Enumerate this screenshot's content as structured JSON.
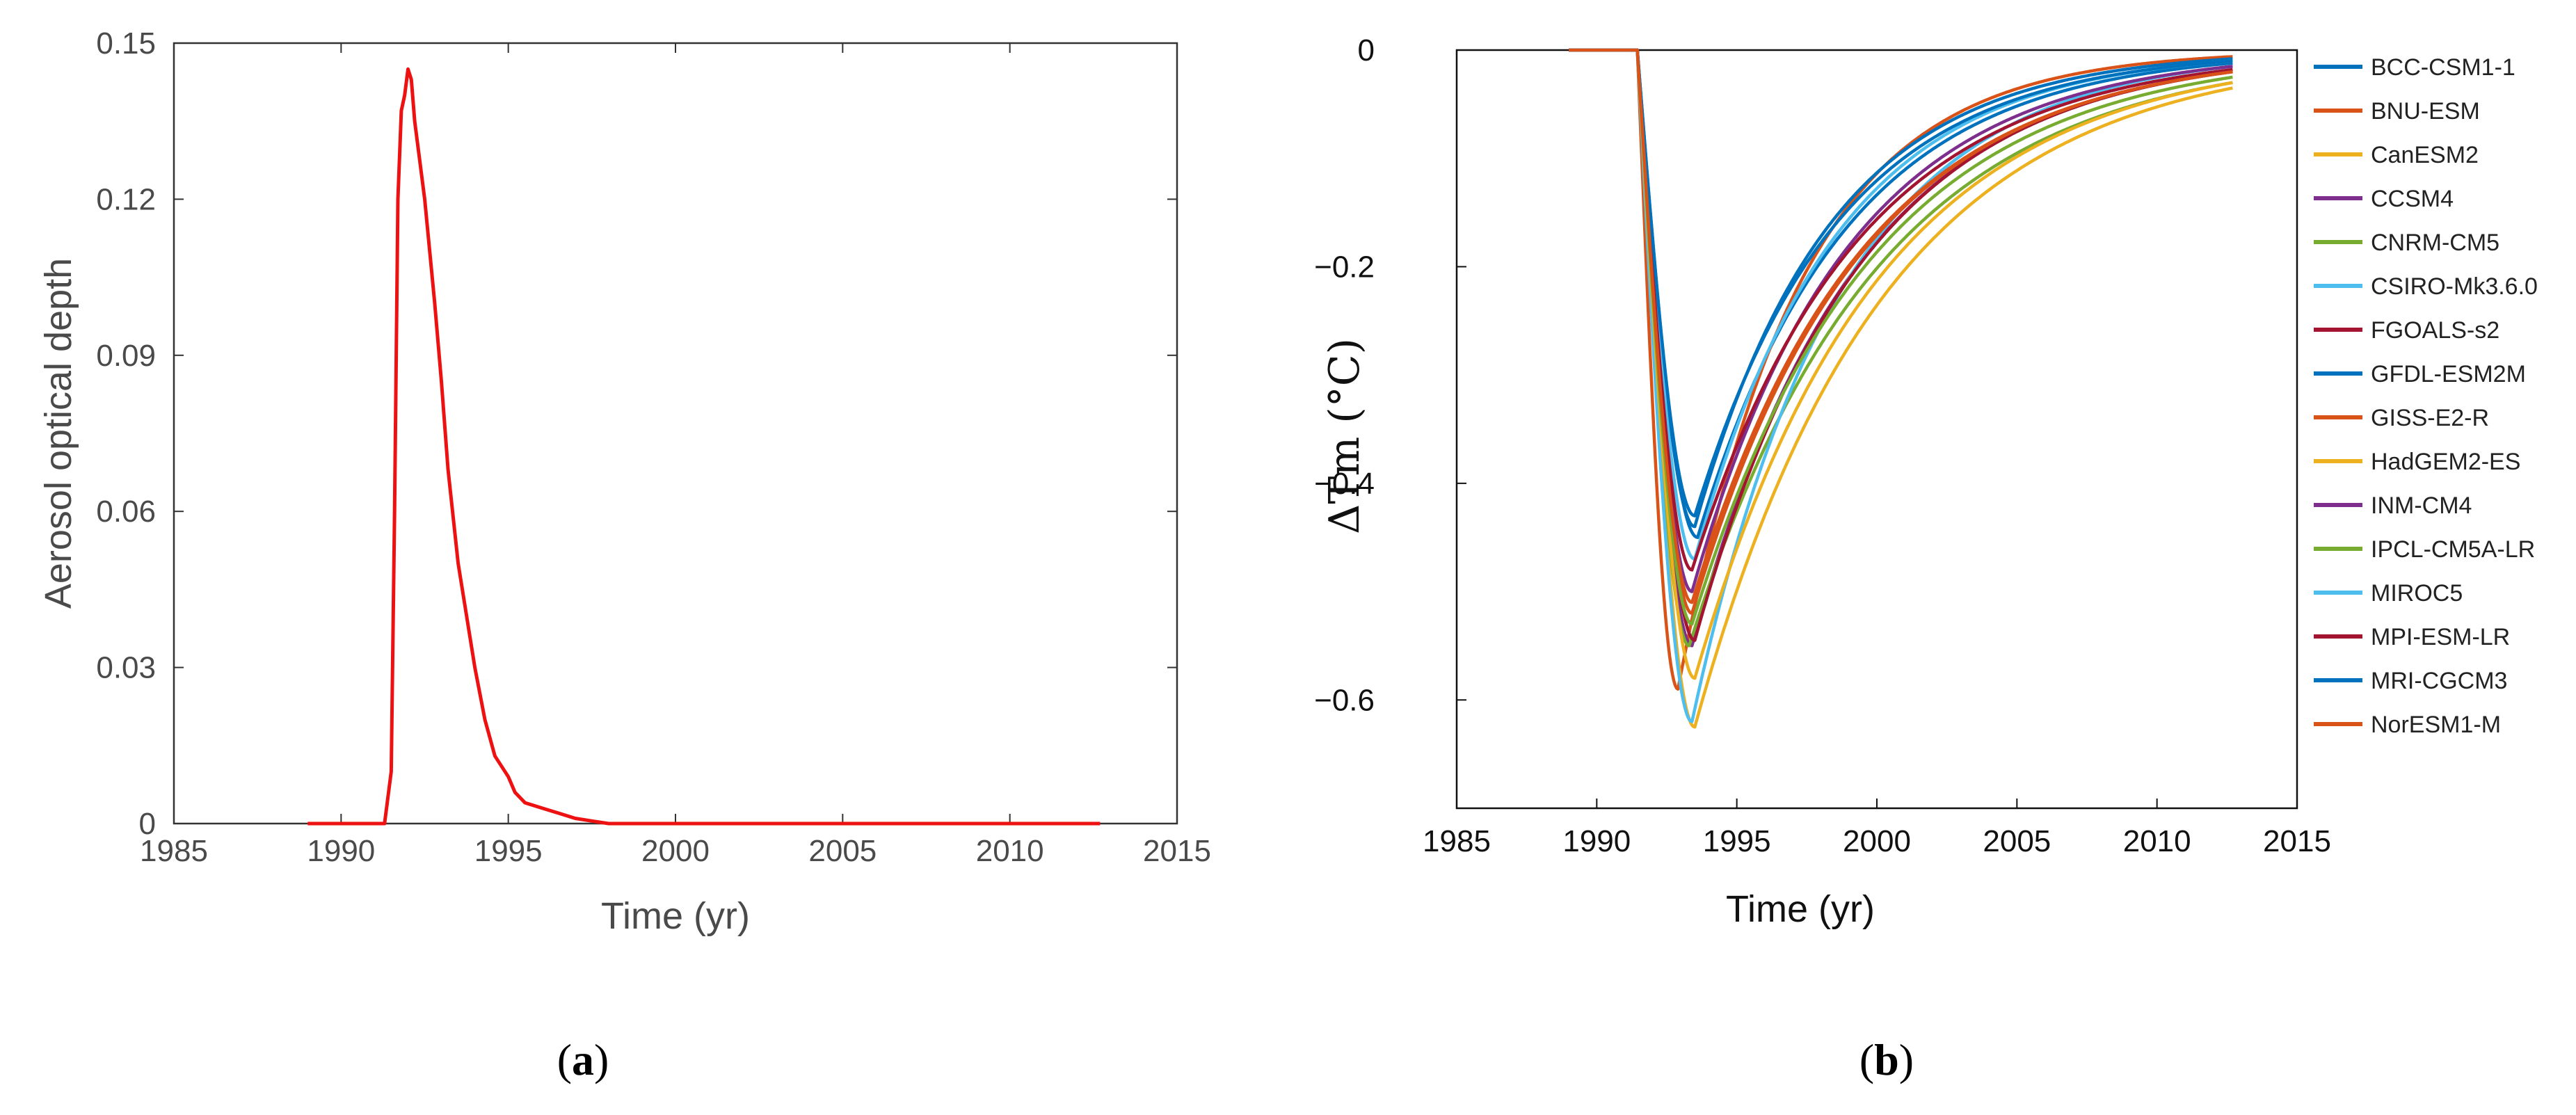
{
  "chart_data": [
    {
      "type": "line",
      "panel_label": "a",
      "xlabel": "Time (yr)",
      "ylabel": "Aerosol optical depth",
      "xlim": [
        1985,
        2015
      ],
      "ylim": [
        0,
        0.15
      ],
      "xticks": [
        "1985",
        "1990",
        "1995",
        "2000",
        "2005",
        "2010",
        "2015"
      ],
      "yticks": [
        "0",
        "0.03",
        "0.06",
        "0.09",
        "0.12",
        "0.15"
      ],
      "series": [
        {
          "name": "Aerosol optical depth",
          "color": "#ee1111",
          "x": [
            1989,
            1991.3,
            1991.5,
            1991.6,
            1991.7,
            1991.8,
            1991.9,
            1992.0,
            1992.1,
            1992.2,
            1992.3,
            1992.5,
            1992.8,
            1993.0,
            1993.2,
            1993.5,
            1993.8,
            1994.0,
            1994.3,
            1994.6,
            1995.0,
            1995.2,
            1995.5,
            1996.0,
            1996.5,
            1997.0,
            1997.5,
            1998.0,
            2000.0,
            2007.0,
            2012.7
          ],
          "y": [
            0,
            0,
            0.01,
            0.06,
            0.12,
            0.137,
            0.14,
            0.145,
            0.143,
            0.135,
            0.13,
            0.12,
            0.1,
            0.085,
            0.068,
            0.05,
            0.038,
            0.03,
            0.02,
            0.013,
            0.009,
            0.006,
            0.004,
            0.003,
            0.002,
            0.001,
            0.0005,
            0,
            0,
            0,
            0
          ]
        }
      ]
    },
    {
      "type": "line",
      "panel_label": "b",
      "xlabel": "Time (yr)",
      "ylabel": "ΔTm (°C)",
      "xlim": [
        1985,
        2015
      ],
      "ylim": [
        -0.7,
        0
      ],
      "xticks": [
        "1985",
        "1990",
        "1995",
        "2000",
        "2005",
        "2010",
        "2015"
      ],
      "yticks": [
        "0",
        "-0.2",
        "-0.4",
        "-0.6"
      ],
      "legend_position": "outside-right",
      "series": [
        {
          "name": "BCC-CSM1-1",
          "color": "#0072BD",
          "min": -0.45,
          "tmin": 1993.6,
          "end": -0.012
        },
        {
          "name": "BNU-ESM",
          "color": "#D95319",
          "min": -0.59,
          "tmin": 1992.9,
          "end": -0.0
        },
        {
          "name": "CanESM2",
          "color": "#EDB120",
          "min": -0.625,
          "tmin": 1993.5,
          "end": -0.035
        },
        {
          "name": "CCSM4",
          "color": "#7E2F8E",
          "min": -0.55,
          "tmin": 1993.4,
          "end": -0.02
        },
        {
          "name": "CNRM-CM5",
          "color": "#77AC30",
          "min": -0.55,
          "tmin": 1993.3,
          "end": -0.03
        },
        {
          "name": "CSIRO-Mk3.6.0",
          "color": "#4DBEEE",
          "min": -0.62,
          "tmin": 1993.4,
          "end": -0.015
        },
        {
          "name": "FGOALS-s2",
          "color": "#A2142F",
          "min": -0.545,
          "tmin": 1993.5,
          "end": -0.02
        },
        {
          "name": "GFDL-ESM2M",
          "color": "#0072BD",
          "min": -0.44,
          "tmin": 1993.5,
          "end": -0.008
        },
        {
          "name": "GISS-E2-R",
          "color": "#D95319",
          "min": -0.52,
          "tmin": 1993.4,
          "end": -0.02
        },
        {
          "name": "HadGEM2-ES",
          "color": "#EDB120",
          "min": -0.58,
          "tmin": 1993.5,
          "end": -0.03
        },
        {
          "name": "INM-CM4",
          "color": "#7E2F8E",
          "min": -0.5,
          "tmin": 1993.4,
          "end": -0.015
        },
        {
          "name": "IPCL-CM5A-LR",
          "color": "#77AC30",
          "min": -0.53,
          "tmin": 1993.4,
          "end": -0.025
        },
        {
          "name": "MIROC5",
          "color": "#4DBEEE",
          "min": -0.47,
          "tmin": 1993.5,
          "end": -0.01
        },
        {
          "name": "MPI-ESM-LR",
          "color": "#A2142F",
          "min": -0.48,
          "tmin": 1993.4,
          "end": -0.018
        },
        {
          "name": "MRI-CGCM3",
          "color": "#0072BD",
          "min": -0.43,
          "tmin": 1993.5,
          "end": -0.01
        },
        {
          "name": "NorESM1-M",
          "color": "#D95319",
          "min": -0.51,
          "tmin": 1993.4,
          "end": -0.02
        }
      ]
    }
  ]
}
